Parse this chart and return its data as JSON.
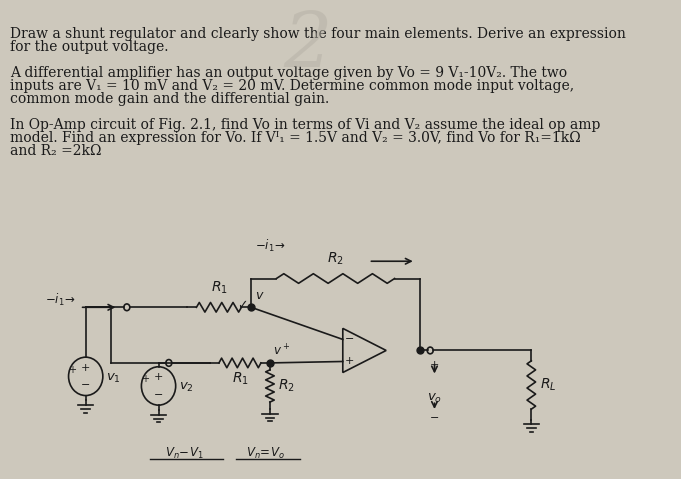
{
  "bg_color": "#cdc8bc",
  "text_color": "#1a1a1a",
  "circuit_color": "#1a1a1a",
  "font_size": 10.0,
  "lines": [
    "Draw a shunt regulator and clearly show the four main elements. Derive an expression",
    "for the output voltage.",
    "",
    "A differential amplifier has an output voltage given by Vo = 9 V₁-10V₂. The two",
    "inputs are V₁ = 10 mV and V₂ = 20 mV. Determine common mode input voltage,",
    "common mode gain and the differential gain.",
    "",
    "In Op-Amp circuit of Fig. 2.1, find Vo in terms of Vi and V₂ assume the ideal op amp",
    "model. Find an expression for Vo. If Vᴵ₁ = 1.5V and V₂ = 3.0V, find Vo for R₁=1kΩ",
    "and R₂ =2kΩ"
  ]
}
